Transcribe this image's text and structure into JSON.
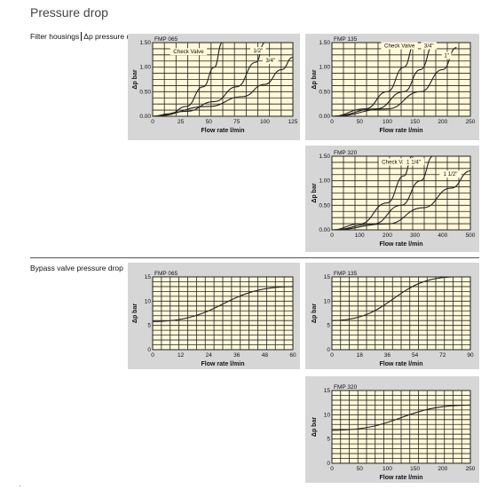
{
  "page": {
    "title": "Pressure drop",
    "section1_label": "Filter housings",
    "section1_sub_label": "Δp pressure drop",
    "section2_label": "Bypass valve pressure drop"
  },
  "colors": {
    "plot_bg": "#fff9d9",
    "panel_bg": "#d6d6d6",
    "grid": "#222222",
    "line": "#222222"
  },
  "chart_data": [
    {
      "id": "fh-fmp065",
      "type": "line",
      "title": "FMP 065",
      "xlabel": "Flow rate l/min",
      "ylabel": "Δp bar",
      "xlim": [
        0,
        125
      ],
      "ylim": [
        0,
        1.5
      ],
      "xticks": [
        0,
        25,
        50,
        75,
        100,
        125
      ],
      "xtick_labels": [
        "0",
        "25",
        "50",
        "75",
        "100",
        "125"
      ],
      "yticks": [
        0,
        0.5,
        1.0,
        1.5
      ],
      "ytick_labels": [
        "0.00",
        "0.50",
        "1.00",
        "1.50"
      ],
      "grid_x": 12,
      "grid_y": 12,
      "series": [
        {
          "name": "",
          "x": [
            0,
            15,
            30,
            45,
            55,
            62
          ],
          "y": [
            0,
            0.05,
            0.2,
            0.6,
            1.0,
            1.5
          ]
        },
        {
          "name": "1/2\"",
          "x": [
            0,
            30,
            55,
            75,
            92,
            100
          ],
          "y": [
            0,
            0.1,
            0.3,
            0.6,
            1.1,
            1.5
          ]
        },
        {
          "name": "3/4\"",
          "x": [
            0,
            50,
            80,
            100,
            115,
            125
          ],
          "y": [
            0,
            0.2,
            0.4,
            0.65,
            0.95,
            1.2
          ]
        }
      ],
      "annotations": [
        {
          "text": "Check Valve",
          "x": 32,
          "y": 1.28,
          "boxed": true
        },
        {
          "text": "1/2\"",
          "x": 94,
          "y": 1.3,
          "boxed": true
        },
        {
          "text": "3/4\"",
          "x": 105,
          "y": 1.1,
          "boxed": true
        }
      ]
    },
    {
      "id": "fh-fmp135",
      "type": "line",
      "title": "FMP 135",
      "xlabel": "Flow rate l/min",
      "ylabel": "Δp bar",
      "xlim": [
        0,
        250
      ],
      "ylim": [
        0,
        1.5
      ],
      "xticks": [
        0,
        50,
        100,
        150,
        200,
        250
      ],
      "xtick_labels": [
        "0",
        "50",
        "100",
        "150",
        "200",
        "250"
      ],
      "yticks": [
        0,
        0.5,
        1.0,
        1.5
      ],
      "ytick_labels": [
        "0.00",
        "0.50",
        "1.00",
        "1.50"
      ],
      "grid_x": 12,
      "grid_y": 12,
      "series": [
        {
          "name": "",
          "x": [
            0,
            60,
            100,
            130,
            150
          ],
          "y": [
            0,
            0.15,
            0.5,
            1.0,
            1.5
          ]
        },
        {
          "name": "3/4\"",
          "x": [
            0,
            80,
            130,
            160,
            185
          ],
          "y": [
            0,
            0.15,
            0.5,
            0.95,
            1.5
          ]
        },
        {
          "name": "1\"",
          "x": [
            0,
            100,
            160,
            200,
            225
          ],
          "y": [
            0,
            0.15,
            0.5,
            0.95,
            1.4
          ]
        }
      ],
      "annotations": [
        {
          "text": "Check Valve",
          "x": 122,
          "y": 1.4,
          "boxed": true
        },
        {
          "text": "3/4\"",
          "x": 175,
          "y": 1.4,
          "boxed": true
        },
        {
          "text": "1\"",
          "x": 207,
          "y": 1.2,
          "boxed": true
        }
      ]
    },
    {
      "id": "fh-fmp320",
      "type": "line",
      "title": "FMP 320",
      "xlabel": "Flow rate l/min",
      "ylabel": "Δp bar",
      "xlim": [
        0,
        500
      ],
      "ylim": [
        0,
        1.5
      ],
      "xticks": [
        0,
        100,
        200,
        300,
        400,
        500
      ],
      "xtick_labels": [
        "0",
        "100",
        "200",
        "300",
        "400",
        "500"
      ],
      "yticks": [
        0,
        0.5,
        1.0,
        1.5
      ],
      "ytick_labels": [
        "0.00",
        "0.50",
        "1.00",
        "1.50"
      ],
      "grid_x": 12,
      "grid_y": 12,
      "series": [
        {
          "name": "",
          "x": [
            0,
            100,
            200,
            260,
            290
          ],
          "y": [
            0,
            0.12,
            0.55,
            1.1,
            1.5
          ]
        },
        {
          "name": "1 1/4\"",
          "x": [
            0,
            150,
            250,
            320,
            365
          ],
          "y": [
            0,
            0.12,
            0.5,
            1.0,
            1.5
          ]
        },
        {
          "name": "1 1/2\"",
          "x": [
            0,
            200,
            330,
            430,
            500
          ],
          "y": [
            0,
            0.12,
            0.45,
            0.85,
            1.2
          ]
        }
      ],
      "annotations": [
        {
          "text": "Check Valve",
          "x": 235,
          "y": 1.35,
          "boxed": true
        },
        {
          "text": "1 1/4\"",
          "x": 295,
          "y": 1.35,
          "boxed": true
        },
        {
          "text": "1 1/2\"",
          "x": 428,
          "y": 1.1,
          "boxed": true
        }
      ]
    },
    {
      "id": "bp-fmp065",
      "type": "line",
      "title": "FMP 065",
      "xlabel": "Flow rate l/min",
      "ylabel": "Δp bar",
      "xlim": [
        0,
        60
      ],
      "ylim": [
        0,
        15
      ],
      "xticks": [
        0,
        12,
        24,
        36,
        48,
        60
      ],
      "xtick_labels": [
        "0",
        "12",
        "24",
        "36",
        "48",
        "60"
      ],
      "yticks": [
        0,
        5,
        10,
        15
      ],
      "ytick_labels": [
        "0",
        "5",
        "10",
        "15"
      ],
      "grid_x": 16,
      "grid_y": 15,
      "series": [
        {
          "name": "",
          "x": [
            0,
            60
          ],
          "y": [
            5.8,
            13.0
          ]
        }
      ],
      "annotations": []
    },
    {
      "id": "bp-fmp135",
      "type": "line",
      "title": "FMP 135",
      "xlabel": "Flow rate l/min",
      "ylabel": "Δp bar",
      "xlim": [
        0,
        90
      ],
      "ylim": [
        0,
        15
      ],
      "xticks": [
        0,
        18,
        36,
        54,
        72,
        90
      ],
      "xtick_labels": [
        "0",
        "18",
        "36",
        "54",
        "72",
        "90"
      ],
      "yticks": [
        0,
        5,
        10,
        15
      ],
      "ytick_labels": [
        "0",
        "5",
        "10",
        "15"
      ],
      "grid_x": 16,
      "grid_y": 15,
      "series": [
        {
          "name": "",
          "x": [
            0,
            80
          ],
          "y": [
            6.0,
            15.0
          ]
        }
      ],
      "annotations": []
    },
    {
      "id": "bp-fmp320",
      "type": "line",
      "title": "FMP 320",
      "xlabel": "Flow rate l/min",
      "ylabel": "Δp bar",
      "xlim": [
        0,
        250
      ],
      "ylim": [
        0,
        15
      ],
      "xticks": [
        0,
        50,
        100,
        150,
        200,
        250
      ],
      "xtick_labels": [
        "0",
        "50",
        "100",
        "150",
        "200",
        "250"
      ],
      "yticks": [
        0,
        5,
        10,
        15
      ],
      "ytick_labels": [
        "0",
        "5",
        "10",
        "15"
      ],
      "grid_x": 16,
      "grid_y": 15,
      "series": [
        {
          "name": "",
          "x": [
            0,
            250
          ],
          "y": [
            6.8,
            12.0
          ]
        }
      ],
      "annotations": []
    }
  ]
}
